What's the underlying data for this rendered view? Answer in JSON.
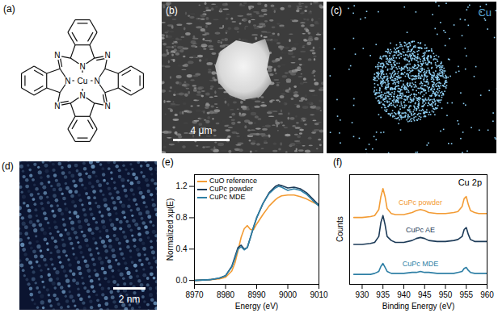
{
  "panels": {
    "a": {
      "label": "(a)",
      "center_atom": "Cu",
      "ring_atom": "N"
    },
    "b": {
      "label": "(b)",
      "scale_bar": "4 μm"
    },
    "c": {
      "label": "(c)",
      "element": "Cu"
    },
    "d": {
      "label": "(d)",
      "scale_bar": "2 nm"
    }
  },
  "chart_data": [
    {
      "type": "line",
      "panel_label": "(e)",
      "xlabel": "Energy (eV)",
      "ylabel": "Normalized xμ(E)",
      "x": [
        8970,
        8975,
        8978,
        8980,
        8982,
        8983,
        8984,
        8985,
        8986,
        8987,
        8988,
        8989,
        8990,
        8992,
        8994,
        8996,
        8997,
        8998,
        9000,
        9002,
        9004,
        9006,
        9008,
        9010
      ],
      "series": [
        {
          "name": "CuO reference",
          "color": "#f39c35",
          "values": [
            0.0,
            0.01,
            0.02,
            0.04,
            0.12,
            0.22,
            0.38,
            0.55,
            0.66,
            0.7,
            0.65,
            0.65,
            0.72,
            0.84,
            0.95,
            1.03,
            1.06,
            1.08,
            1.09,
            1.09,
            1.07,
            1.04,
            1.0,
            0.96
          ]
        },
        {
          "name": "CuPc powder",
          "color": "#1d3b58",
          "values": [
            0.0,
            0.01,
            0.03,
            0.06,
            0.18,
            0.3,
            0.42,
            0.45,
            0.4,
            0.42,
            0.55,
            0.68,
            0.8,
            0.98,
            1.12,
            1.2,
            1.22,
            1.21,
            1.18,
            1.19,
            1.17,
            1.12,
            1.04,
            0.96
          ]
        },
        {
          "name": "CuPc MDE",
          "color": "#2e7fa5",
          "values": [
            0.0,
            0.01,
            0.03,
            0.06,
            0.17,
            0.28,
            0.4,
            0.43,
            0.39,
            0.42,
            0.55,
            0.68,
            0.8,
            0.98,
            1.11,
            1.18,
            1.2,
            1.19,
            1.15,
            1.17,
            1.15,
            1.1,
            1.02,
            0.95
          ]
        }
      ],
      "xlim": [
        8970,
        9010
      ],
      "ylim": [
        -0.05,
        1.35
      ],
      "xticks": [
        8970,
        8980,
        8990,
        9000,
        9010
      ],
      "yticks": [
        {
          "value": 0,
          "label": "0.0"
        },
        0.4,
        0.8,
        1.2
      ],
      "legend": "upper left"
    },
    {
      "type": "line",
      "panel_label": "(f)",
      "xlabel": "Binding Energy (eV)",
      "ylabel": "Counts",
      "annotations": [
        "Cu 2p"
      ],
      "x": [
        928,
        930,
        932,
        933,
        934,
        934.5,
        935,
        935.5,
        936,
        937,
        938,
        940,
        942,
        943,
        944,
        945,
        946,
        948,
        950,
        952,
        953,
        954,
        954.5,
        955,
        955.5,
        956,
        957,
        958,
        960
      ],
      "series": [
        {
          "name": "CuPc powder",
          "color": "#f39c35",
          "values": [
            67,
            67,
            68,
            69,
            75,
            88,
            96,
            88,
            76,
            71,
            70,
            70,
            72,
            74,
            75,
            74,
            72,
            71,
            71,
            72,
            73,
            78,
            86,
            88,
            80,
            74,
            72,
            71,
            71
          ]
        },
        {
          "name": "CuPc AE",
          "color": "#1d3b58",
          "values": [
            40,
            40,
            41,
            42,
            48,
            62,
            69,
            60,
            48,
            44,
            42,
            42,
            44,
            46,
            47,
            46,
            44,
            43,
            43,
            44,
            45,
            48,
            55,
            57,
            50,
            45,
            43,
            43,
            43
          ]
        },
        {
          "name": "CuPc MDE",
          "color": "#2e7fa5",
          "values": [
            10,
            10,
            10,
            11,
            13,
            18,
            21,
            17,
            13,
            11,
            11,
            11,
            12,
            12,
            13,
            12,
            12,
            11,
            11,
            11,
            12,
            13,
            16,
            17,
            14,
            12,
            11,
            11,
            11
          ]
        }
      ],
      "xlim": [
        927,
        960
      ],
      "ylim": [
        0,
        110
      ],
      "xticks": [
        930,
        935,
        940,
        945,
        950,
        955,
        960
      ],
      "tick_labels": "x"
    }
  ]
}
